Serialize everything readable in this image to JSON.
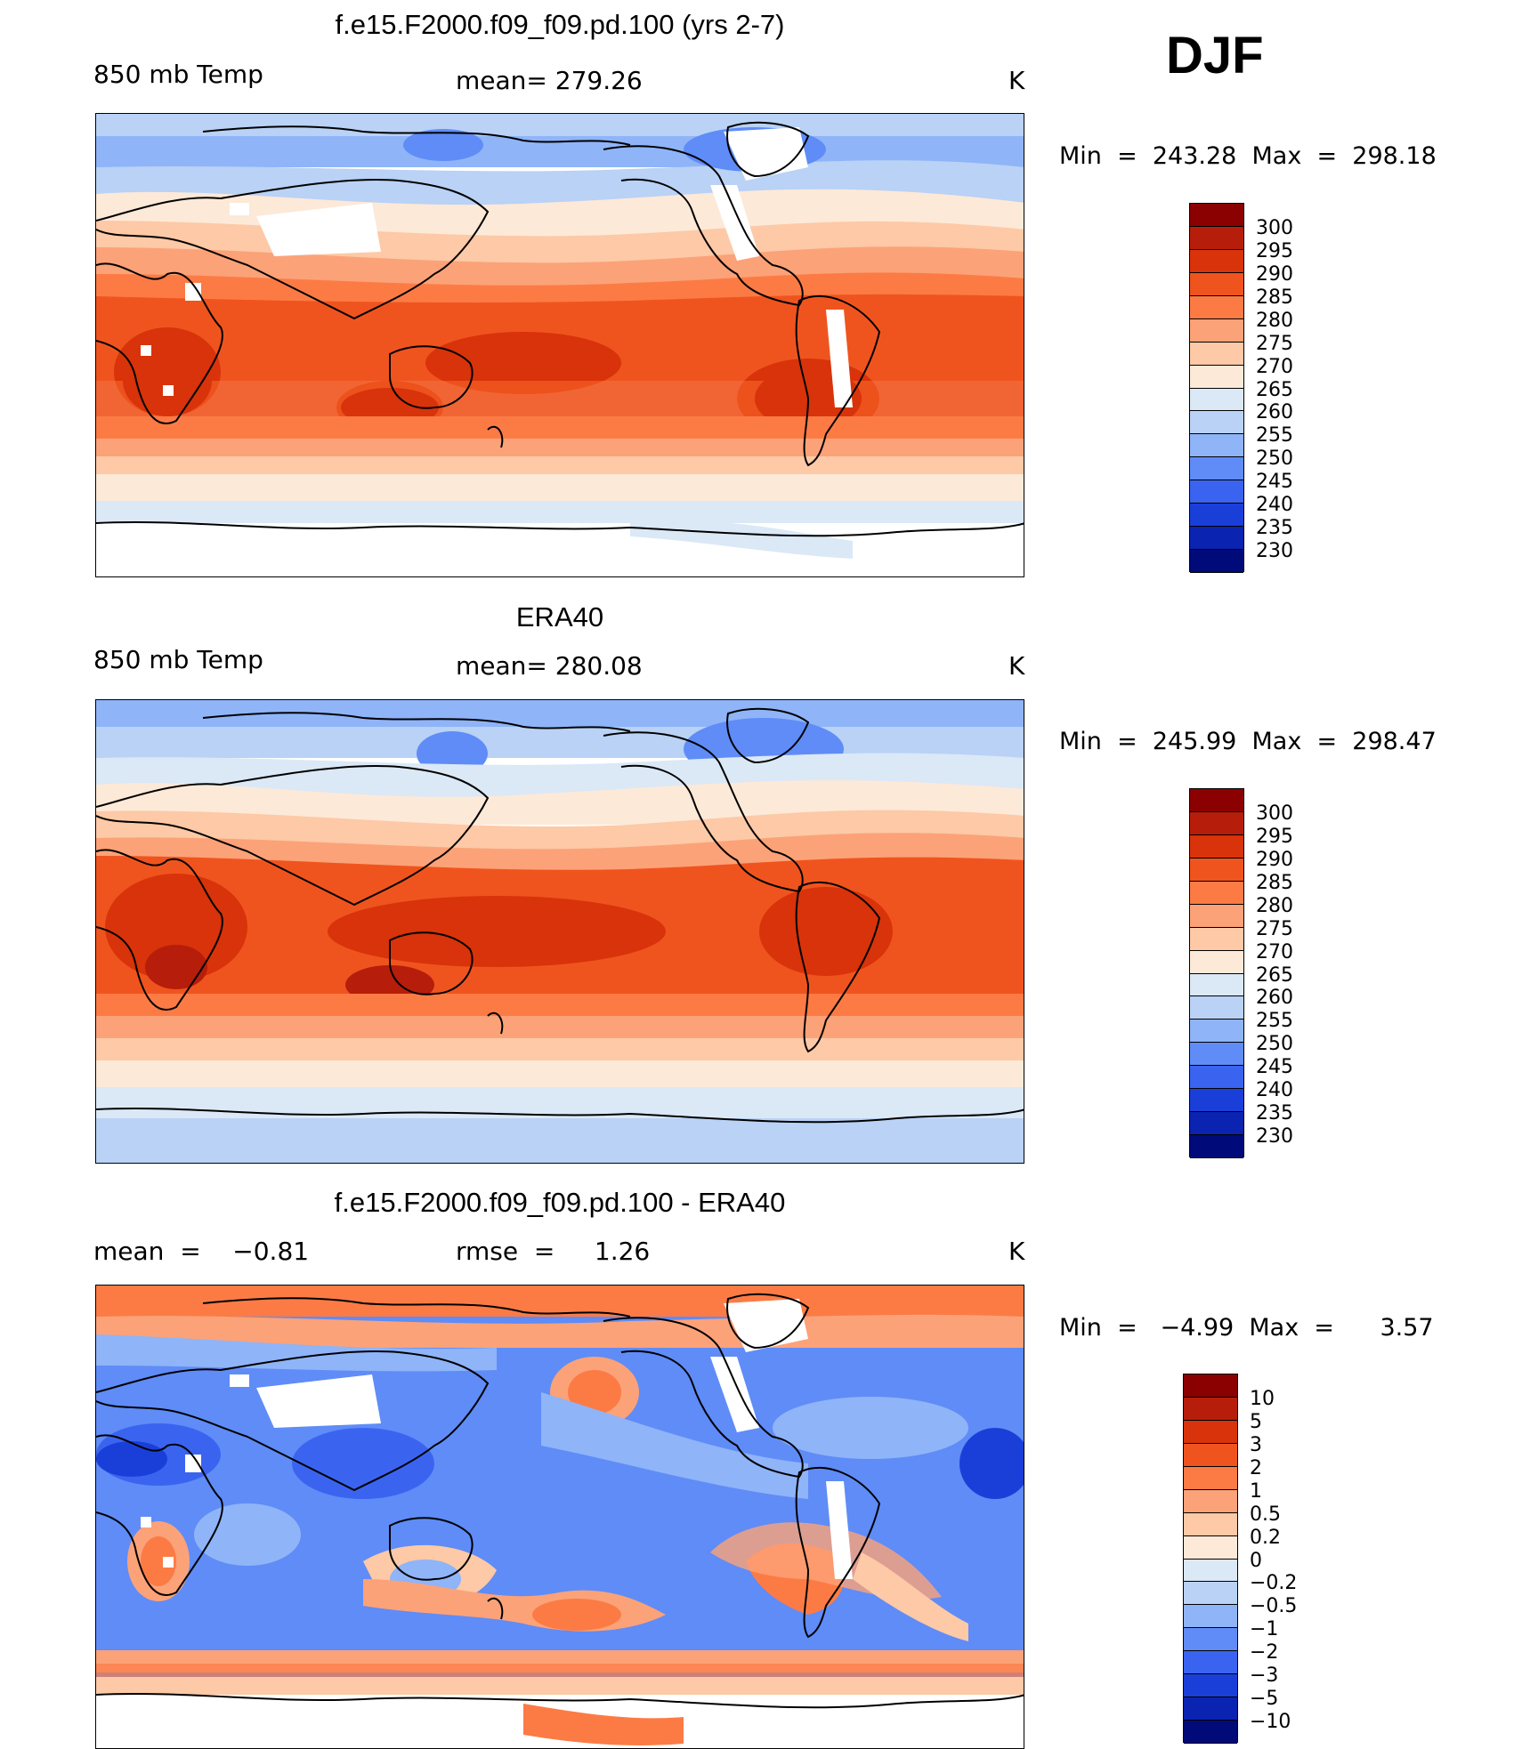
{
  "season": "DJF",
  "panels": [
    {
      "title": "f.e15.F2000.f09_f09.pd.100 (yrs 2-7)",
      "left_label": "850 mb Temp",
      "center_label": "mean= 279.26",
      "units": "K",
      "minmax": "Min  =  243.28  Max  =  298.18",
      "colorbar": {
        "ticks": [
          "300",
          "295",
          "290",
          "285",
          "280",
          "275",
          "270",
          "265",
          "260",
          "255",
          "250",
          "245",
          "240",
          "235",
          "230"
        ],
        "colors": [
          "#8b0000",
          "#b71d0b",
          "#d8330a",
          "#f0541e",
          "#fc7b45",
          "#fca278",
          "#fdc9a6",
          "#fde9d8",
          "#dbe8f6",
          "#b9d2f5",
          "#8fb4f8",
          "#5f8cf7",
          "#3a64f0",
          "#1a3fd9",
          "#0a23b0",
          "#000a78"
        ]
      }
    },
    {
      "title": "ERA40",
      "left_label": "850 mb Temp",
      "center_label": "mean= 280.08",
      "units": "K",
      "minmax": "Min  =  245.99  Max  =  298.47",
      "colorbar": {
        "ticks": [
          "300",
          "295",
          "290",
          "285",
          "280",
          "275",
          "270",
          "265",
          "260",
          "255",
          "250",
          "245",
          "240",
          "235",
          "230"
        ],
        "colors": [
          "#8b0000",
          "#b71d0b",
          "#d8330a",
          "#f0541e",
          "#fc7b45",
          "#fca278",
          "#fdc9a6",
          "#fde9d8",
          "#dbe8f6",
          "#b9d2f5",
          "#8fb4f8",
          "#5f8cf7",
          "#3a64f0",
          "#1a3fd9",
          "#0a23b0",
          "#000a78"
        ]
      }
    },
    {
      "title": "f.e15.F2000.f09_f09.pd.100 - ERA40",
      "left_label": "mean  =    −0.81",
      "center_label": "rmse  =     1.26",
      "units": "K",
      "minmax": "Min  =   −4.99  Max  =      3.57",
      "colorbar": {
        "ticks": [
          "10",
          "5",
          "3",
          "2",
          "1",
          "0.5",
          "0.2",
          "0",
          "−0.2",
          "−0.5",
          "−1",
          "−2",
          "−3",
          "−5",
          "−10"
        ],
        "colors": [
          "#8b0000",
          "#b71d0b",
          "#d8330a",
          "#f0541e",
          "#fc7b45",
          "#fca278",
          "#fdc9a6",
          "#fde9d8",
          "#dbe8f6",
          "#b9d2f5",
          "#8fb4f8",
          "#5f8cf7",
          "#3a64f0",
          "#1a3fd9",
          "#0a23b0",
          "#000a78"
        ]
      }
    }
  ]
}
